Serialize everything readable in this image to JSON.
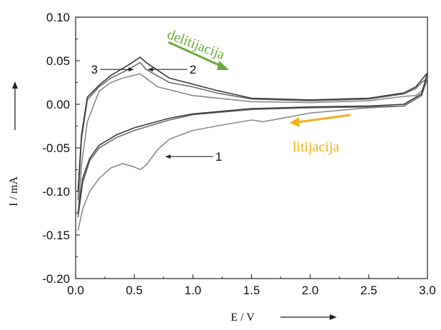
{
  "chart_data": {
    "type": "line",
    "xlabel": "E / V",
    "ylabel": "I / mA",
    "xlim": [
      0.0,
      3.0
    ],
    "ylim": [
      -0.2,
      0.1
    ],
    "x_ticks": [
      "0.0",
      "0.5",
      "1.0",
      "1.5",
      "2.0",
      "2.5",
      "3.0"
    ],
    "y_ticks": [
      "0.10",
      "0.05",
      "0.00",
      "-0.05",
      "-0.10",
      "-0.15",
      "-0.20"
    ],
    "grid": false,
    "series": [
      {
        "name": "1",
        "color": "#8a8a8a",
        "x": [
          0.02,
          0.06,
          0.12,
          0.2,
          0.3,
          0.4,
          0.5,
          0.55,
          0.6,
          0.7,
          0.8,
          1.0,
          1.2,
          1.5,
          1.6,
          2.0,
          2.5,
          2.8,
          2.95,
          3.0,
          2.95,
          2.9,
          2.8,
          2.5,
          2.0,
          1.5,
          1.0,
          0.7,
          0.55,
          0.4,
          0.3,
          0.2,
          0.1,
          0.05,
          0.02
        ],
        "y": [
          -0.145,
          -0.12,
          -0.1,
          -0.085,
          -0.073,
          -0.068,
          -0.072,
          -0.075,
          -0.07,
          -0.052,
          -0.04,
          -0.03,
          -0.025,
          -0.018,
          -0.02,
          -0.01,
          -0.004,
          -0.002,
          0.01,
          0.03,
          0.015,
          0.01,
          0.009,
          0.004,
          0.002,
          0.003,
          0.01,
          0.02,
          0.035,
          0.03,
          0.025,
          0.015,
          -0.02,
          -0.07,
          -0.13
        ]
      },
      {
        "name": "2",
        "color": "#6e6e6e",
        "x": [
          0.02,
          0.06,
          0.12,
          0.2,
          0.35,
          0.5,
          0.8,
          1.0,
          1.5,
          2.0,
          2.5,
          2.8,
          2.95,
          3.0,
          2.95,
          2.9,
          2.8,
          2.5,
          2.0,
          1.5,
          1.2,
          1.0,
          0.8,
          0.6,
          0.55,
          0.45,
          0.3,
          0.2,
          0.1,
          0.05,
          0.02
        ],
        "y": [
          -0.13,
          -0.09,
          -0.065,
          -0.05,
          -0.038,
          -0.03,
          -0.018,
          -0.012,
          -0.006,
          -0.004,
          -0.003,
          -0.002,
          0.01,
          0.03,
          0.025,
          0.018,
          0.012,
          0.006,
          0.004,
          0.006,
          0.013,
          0.02,
          0.025,
          0.04,
          0.048,
          0.04,
          0.03,
          0.02,
          0.005,
          -0.04,
          -0.11
        ]
      },
      {
        "name": "3",
        "color": "#3a3a3a",
        "x": [
          0.02,
          0.06,
          0.12,
          0.2,
          0.35,
          0.5,
          0.8,
          1.0,
          1.5,
          2.0,
          2.5,
          2.8,
          2.95,
          3.0,
          2.95,
          2.9,
          2.8,
          2.5,
          2.0,
          1.5,
          1.2,
          1.0,
          0.8,
          0.6,
          0.55,
          0.45,
          0.3,
          0.2,
          0.1,
          0.05,
          0.02
        ],
        "y": [
          -0.125,
          -0.085,
          -0.062,
          -0.047,
          -0.035,
          -0.027,
          -0.016,
          -0.011,
          -0.005,
          -0.003,
          -0.002,
          0.0,
          0.012,
          0.036,
          0.028,
          0.02,
          0.013,
          0.007,
          0.005,
          0.007,
          0.016,
          0.023,
          0.03,
          0.048,
          0.054,
          0.045,
          0.033,
          0.022,
          0.008,
          -0.035,
          -0.1
        ]
      }
    ],
    "annotations": [
      {
        "text": "1",
        "x": 0.73,
        "y": -0.06,
        "label_x": 1.22,
        "label_y": -0.06
      },
      {
        "text": "2",
        "x": 0.58,
        "y": 0.04,
        "label_x": 1.0,
        "label_y": 0.04
      },
      {
        "text": "3",
        "x": 0.53,
        "y": 0.04,
        "label_x": 0.16,
        "label_y": 0.04
      }
    ],
    "arrow_labels": [
      {
        "text": "delitijacija",
        "color": "#6aaa3a"
      },
      {
        "text": "litijacija",
        "color": "#f2b015"
      }
    ]
  }
}
